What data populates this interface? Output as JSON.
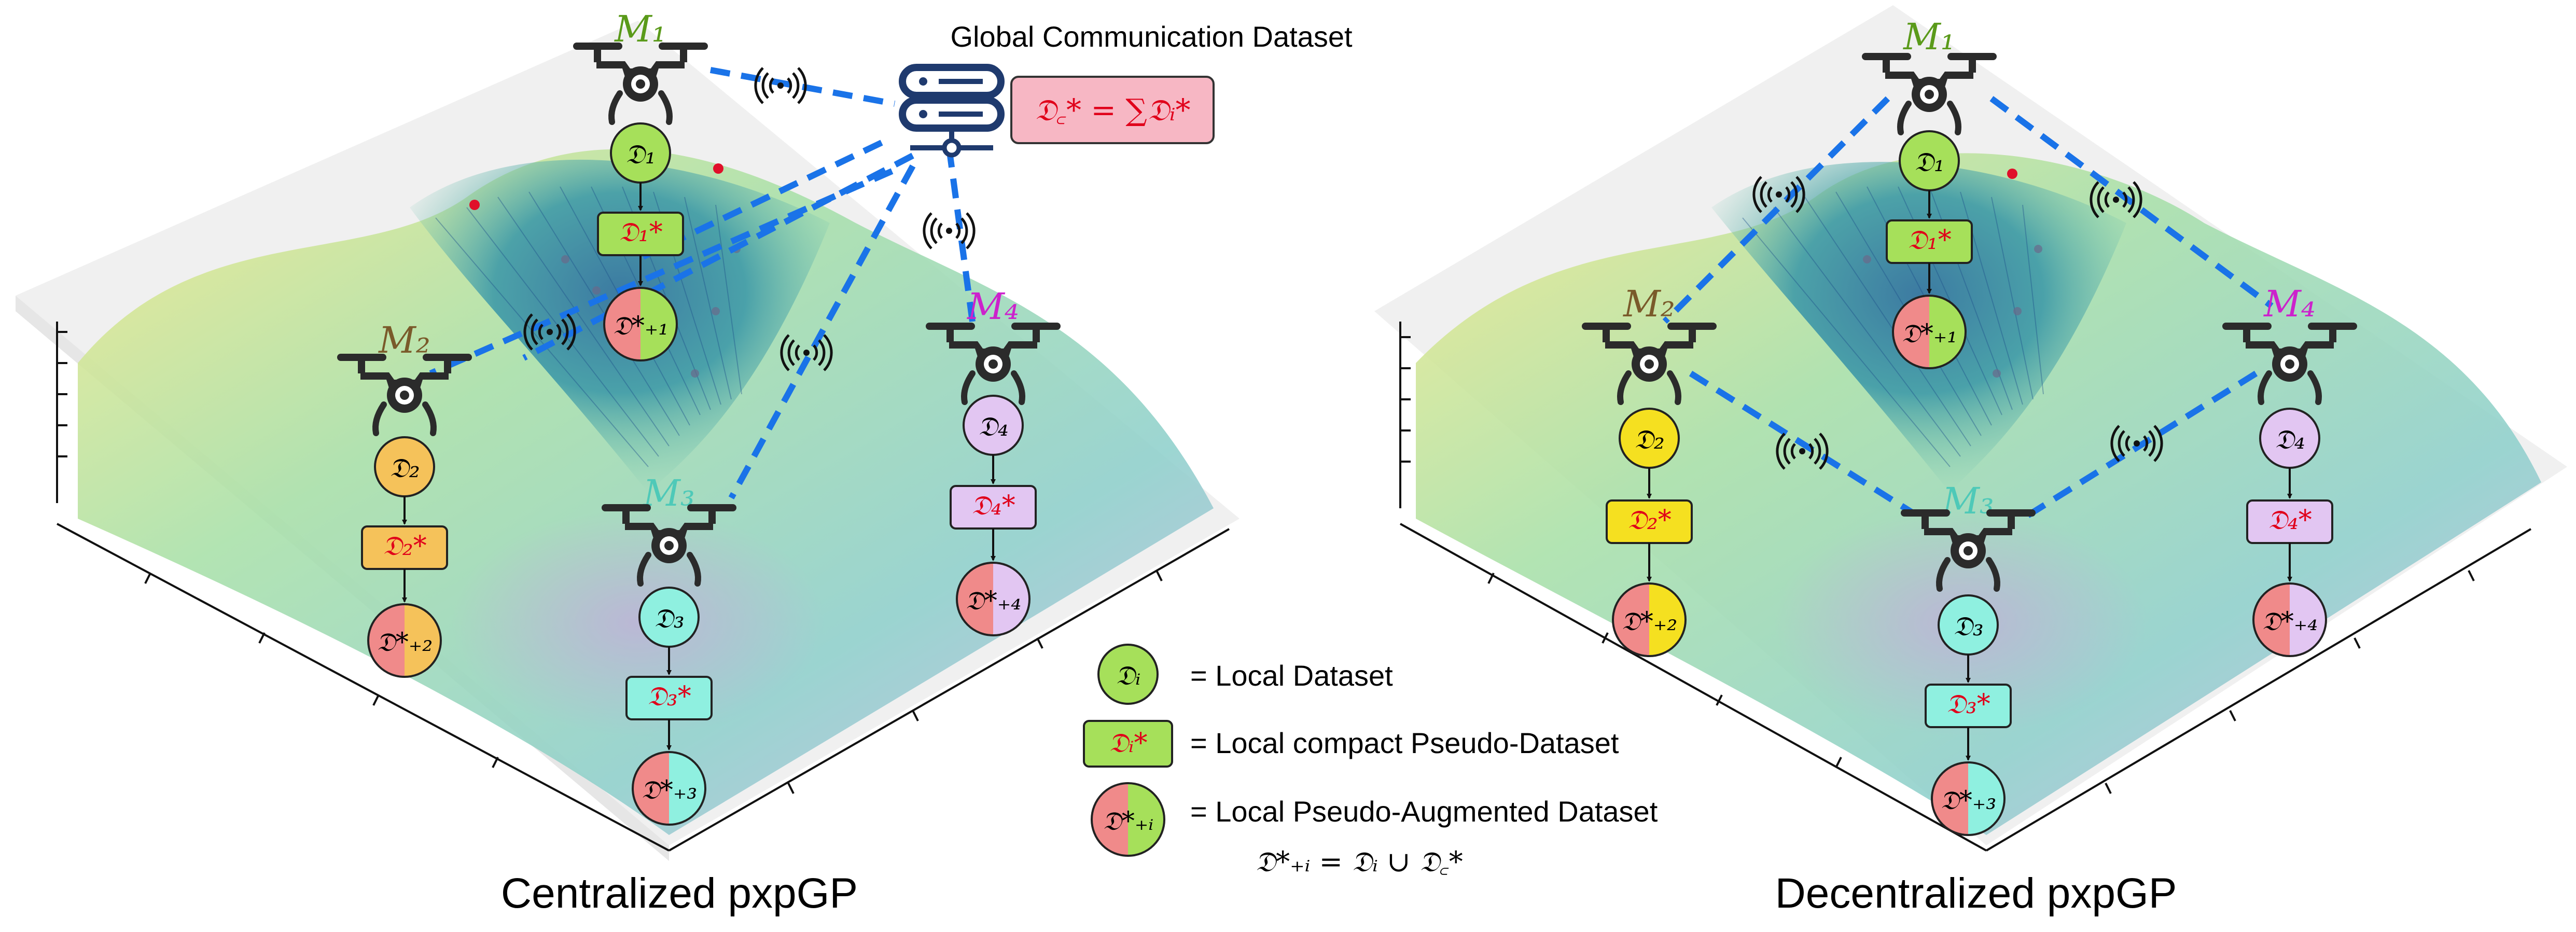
{
  "panels": {
    "centralized": {
      "caption": "Centralized pxpGP"
    },
    "decentralized": {
      "caption": "Decentralized pxpGP"
    }
  },
  "global_dataset": {
    "title": "Global Communication Dataset",
    "formula": "𝔇꜀* = ∑𝔇ᵢ*",
    "icon": "server-icon"
  },
  "agents": [
    {
      "label": "M₁",
      "color": "#5a9a1a",
      "dataset": "𝔇₁",
      "pseudo": "𝔇₁*",
      "augmented": "𝔇*₊₁",
      "fill": "#a6e05a"
    },
    {
      "label": "M₂",
      "color": "#7a5a2a",
      "dataset": "𝔇₂",
      "pseudo": "𝔇₂*",
      "augmented": "𝔇*₊₂",
      "fill": "#f5c25a"
    },
    {
      "label": "M₃",
      "color": "#4ec9b8",
      "dataset": "𝔇₃",
      "pseudo": "𝔇₃*",
      "augmented": "𝔇*₊₃",
      "fill": "#8ff0e0"
    },
    {
      "label": "M₄",
      "color": "#cc22cc",
      "dataset": "𝔇₄",
      "pseudo": "𝔇₄*",
      "augmented": "𝔇*₊₄",
      "fill": "#e2c6f2"
    }
  ],
  "decentralized_m2_fill": "#f5e020",
  "legend": {
    "local": {
      "symbol": "𝔇ᵢ",
      "text": "= Local Dataset"
    },
    "pseudo": {
      "symbol": "𝔇ᵢ*",
      "text": "= Local compact Pseudo-Dataset"
    },
    "augmented": {
      "symbol": "𝔇*₊ᵢ",
      "text": "= Local Pseudo-Augmented Dataset"
    },
    "union": "𝔇*₊ᵢ = 𝔇ᵢ ∪ 𝔇꜀*"
  },
  "colors": {
    "link": "#1a73e8",
    "pseudo_text": "#e0001a",
    "augmented_left": "#f08a8a",
    "formula_bg": "#f7b7c4"
  },
  "icons": [
    "drone-icon",
    "wireless-signal-icon",
    "server-icon"
  ]
}
